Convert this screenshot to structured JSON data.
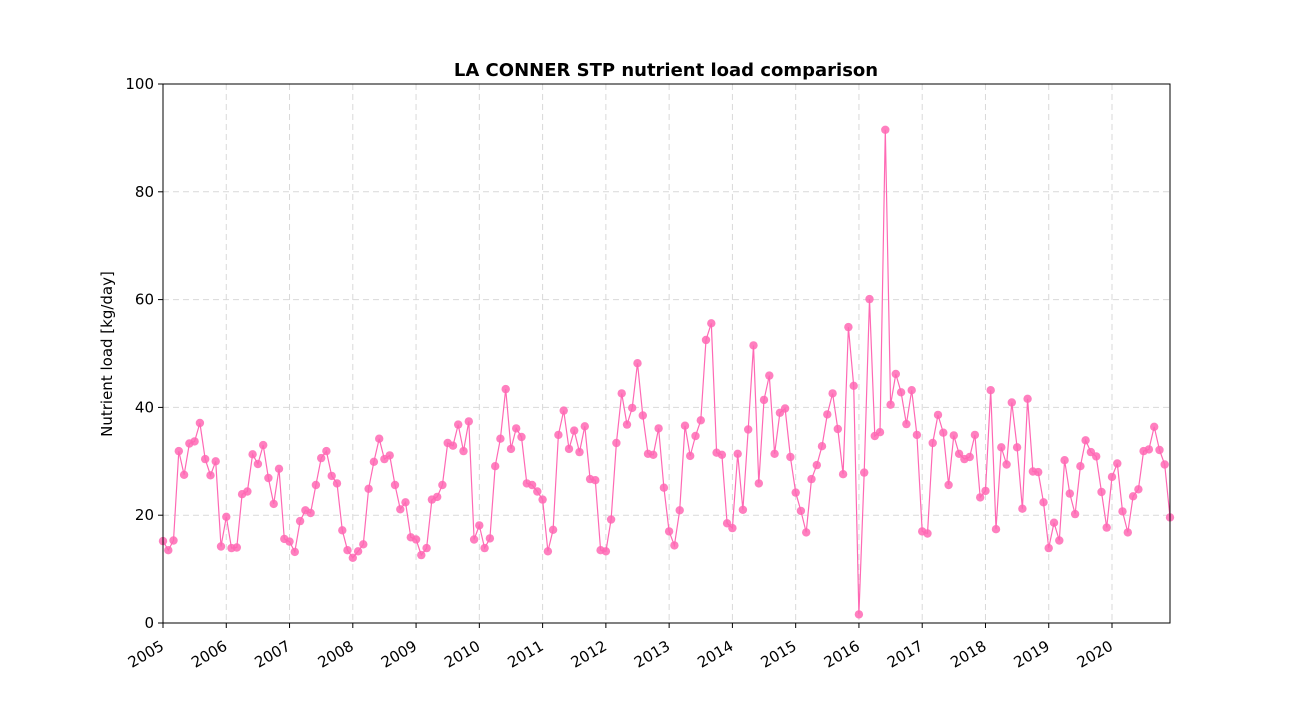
{
  "chart_data": {
    "type": "line",
    "title": "LA CONNER STP nutrient load comparison",
    "xlabel": "",
    "ylabel": "Nutrient load [kg/day]",
    "ylim": [
      0,
      100
    ],
    "xlim": [
      "2005-01",
      "2020-12"
    ],
    "yticks": [
      "0",
      "20",
      "40",
      "60",
      "80",
      "100"
    ],
    "xticks": [
      "2005",
      "2006",
      "2007",
      "2008",
      "2009",
      "2010",
      "2011",
      "2012",
      "2013",
      "2014",
      "2015",
      "2016",
      "2017",
      "2018",
      "2019",
      "2020"
    ],
    "grid": true,
    "legend": "none",
    "color": "#ff69b4",
    "series": [
      {
        "x": [
          "2005-01",
          "2005-02",
          "2005-03",
          "2005-04",
          "2005-05",
          "2005-06",
          "2005-07",
          "2005-08",
          "2005-09",
          "2005-10",
          "2005-11",
          "2005-12",
          "2006-01",
          "2006-02",
          "2006-03",
          "2006-04",
          "2006-05",
          "2006-06",
          "2006-07",
          "2006-08",
          "2006-09",
          "2006-10",
          "2006-11",
          "2006-12",
          "2007-01",
          "2007-02",
          "2007-03",
          "2007-04",
          "2007-05",
          "2007-06",
          "2007-07",
          "2007-08",
          "2007-09",
          "2007-10",
          "2007-11",
          "2007-12",
          "2008-01",
          "2008-02",
          "2008-03",
          "2008-04",
          "2008-05",
          "2008-06",
          "2008-07",
          "2008-08",
          "2008-09",
          "2008-10",
          "2008-11",
          "2008-12",
          "2009-01",
          "2009-02",
          "2009-03",
          "2009-04",
          "2009-05",
          "2009-06",
          "2009-07",
          "2009-08",
          "2009-09",
          "2009-10",
          "2009-11",
          "2009-12",
          "2010-01",
          "2010-02",
          "2010-03",
          "2010-04",
          "2010-05",
          "2010-06",
          "2010-07",
          "2010-08",
          "2010-09",
          "2010-10",
          "2010-11",
          "2010-12",
          "2011-01",
          "2011-02",
          "2011-03",
          "2011-04",
          "2011-05",
          "2011-06",
          "2011-07",
          "2011-08",
          "2011-09",
          "2011-10",
          "2011-11",
          "2011-12",
          "2012-01",
          "2012-02",
          "2012-03",
          "2012-04",
          "2012-05",
          "2012-06",
          "2012-07",
          "2012-08",
          "2012-09",
          "2012-10",
          "2012-11",
          "2012-12",
          "2013-01",
          "2013-02",
          "2013-03",
          "2013-04",
          "2013-05",
          "2013-06",
          "2013-07",
          "2013-08",
          "2013-09",
          "2013-10",
          "2013-11",
          "2013-12",
          "2014-01",
          "2014-02",
          "2014-03",
          "2014-04",
          "2014-05",
          "2014-06",
          "2014-07",
          "2014-08",
          "2014-09",
          "2014-10",
          "2014-11",
          "2014-12",
          "2015-01",
          "2015-02",
          "2015-03",
          "2015-04",
          "2015-05",
          "2015-06",
          "2015-07",
          "2015-08",
          "2015-09",
          "2015-10",
          "2015-11",
          "2015-12",
          "2016-01",
          "2016-02",
          "2016-03",
          "2016-04",
          "2016-05",
          "2016-06",
          "2016-07",
          "2016-08",
          "2016-09",
          "2016-10",
          "2016-11",
          "2016-12",
          "2017-01",
          "2017-02",
          "2017-03",
          "2017-04",
          "2017-05",
          "2017-06",
          "2017-07",
          "2017-08",
          "2017-09",
          "2017-10",
          "2017-11",
          "2017-12",
          "2018-01",
          "2018-02",
          "2018-03",
          "2018-04",
          "2018-05",
          "2018-06",
          "2018-07",
          "2018-08",
          "2018-09",
          "2018-10",
          "2018-11",
          "2018-12",
          "2019-01",
          "2019-02",
          "2019-03",
          "2019-04",
          "2019-05",
          "2019-06",
          "2019-07",
          "2019-08",
          "2019-09",
          "2019-10",
          "2019-11",
          "2019-12",
          "2020-01",
          "2020-02",
          "2020-03",
          "2020-04",
          "2020-05",
          "2020-06",
          "2020-07",
          "2020-08",
          "2020-09",
          "2020-10",
          "2020-11",
          "2020-12"
        ],
        "values": [
          15.2,
          13.5,
          15.3,
          31.9,
          27.5,
          33.3,
          33.7,
          37.1,
          30.4,
          27.4,
          30.0,
          14.2,
          19.7,
          13.9,
          14.0,
          23.9,
          24.4,
          31.3,
          29.5,
          33.0,
          26.9,
          22.1,
          28.6,
          15.6,
          15.1,
          13.2,
          18.9,
          20.9,
          20.4,
          25.6,
          30.6,
          31.9,
          27.3,
          25.9,
          17.2,
          13.5,
          12.1,
          13.3,
          14.6,
          24.9,
          29.9,
          34.2,
          30.4,
          31.1,
          25.6,
          21.1,
          22.4,
          15.9,
          15.5,
          12.6,
          13.9,
          22.9,
          23.4,
          25.6,
          33.4,
          32.9,
          36.8,
          31.9,
          37.4,
          15.5,
          18.1,
          13.9,
          15.7,
          29.1,
          34.2,
          43.4,
          32.3,
          36.1,
          34.5,
          25.9,
          25.6,
          24.4,
          22.9,
          13.3,
          17.3,
          34.9,
          39.4,
          32.3,
          35.7,
          31.7,
          36.5,
          26.7,
          26.5,
          13.5,
          13.3,
          19.2,
          33.4,
          42.6,
          36.8,
          39.9,
          48.2,
          38.5,
          31.4,
          31.2,
          36.1,
          25.1,
          17.0,
          14.4,
          20.9,
          36.6,
          31.0,
          34.7,
          37.6,
          52.5,
          55.6,
          31.6,
          31.2,
          18.5,
          17.6,
          31.4,
          21.0,
          35.9,
          51.5,
          25.9,
          41.4,
          45.9,
          31.4,
          39.0,
          39.8,
          30.8,
          24.2,
          20.8,
          16.8,
          26.7,
          29.3,
          32.8,
          38.7,
          42.6,
          36.0,
          27.6,
          54.9,
          44.0,
          1.6,
          27.9,
          60.1,
          34.7,
          35.4,
          91.5,
          40.5,
          46.2,
          42.8,
          36.9,
          43.2,
          34.9,
          17.0,
          16.6,
          33.4,
          38.6,
          35.3,
          25.6,
          34.8,
          31.4,
          30.4,
          30.8,
          34.9,
          23.3,
          24.5,
          43.2,
          17.4,
          32.6,
          29.4,
          40.9,
          32.6,
          21.2,
          41.6,
          28.1,
          28.0,
          22.4,
          13.9,
          18.6,
          15.3,
          30.2,
          24.0,
          20.2,
          29.1,
          33.9,
          31.7,
          30.9,
          24.3,
          17.7,
          27.1,
          29.6,
          20.7,
          16.8,
          23.5,
          24.8,
          31.9,
          32.2,
          36.4,
          32.1,
          29.4,
          19.6
        ]
      }
    ]
  }
}
